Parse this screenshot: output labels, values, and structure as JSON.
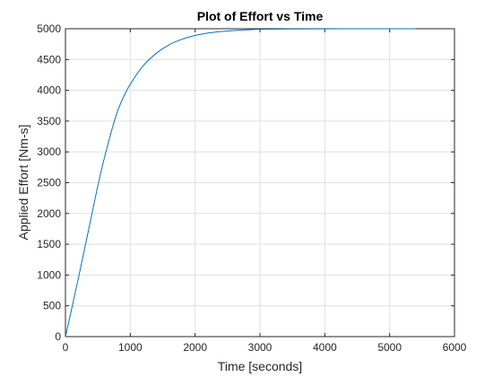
{
  "chart_data": {
    "type": "line",
    "title": "Plot of Effort vs Time",
    "xlabel": "Time [seconds]",
    "ylabel": "Applied Effort [Nm-s]",
    "xlim": [
      0,
      6000
    ],
    "ylim": [
      0,
      5000
    ],
    "xticks": [
      0,
      1000,
      2000,
      3000,
      4000,
      5000,
      6000
    ],
    "yticks": [
      0,
      500,
      1000,
      1500,
      2000,
      2500,
      3000,
      3500,
      4000,
      4500,
      5000
    ],
    "grid": true,
    "colors": {
      "line": "#0072bd",
      "grid": "#dfdfdf",
      "axes": "#262626"
    },
    "series": [
      {
        "x": [
          0,
          100,
          200,
          300,
          400,
          500,
          600,
          700,
          800,
          900,
          1000,
          1200,
          1400,
          1600,
          1800,
          2000,
          2200,
          2400,
          2600,
          2800,
          3000,
          3500,
          4000,
          4500,
          5000,
          5400
        ],
        "y": [
          0,
          470,
          950,
          1450,
          1950,
          2450,
          2900,
          3300,
          3650,
          3900,
          4100,
          4400,
          4600,
          4740,
          4830,
          4890,
          4930,
          4955,
          4970,
          4982,
          4990,
          4996,
          4999,
          5000,
          5000,
          5000
        ]
      }
    ]
  }
}
